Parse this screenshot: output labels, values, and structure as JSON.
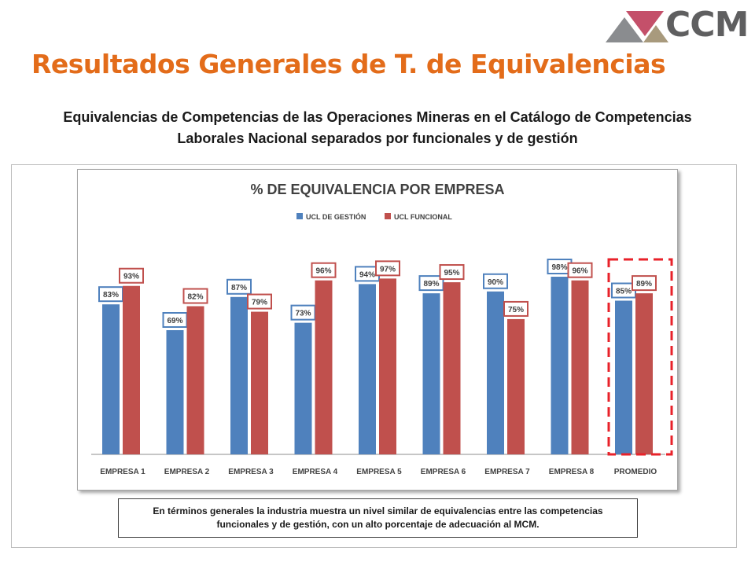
{
  "header": {
    "title": "Resultados Generales de T. de Equivalencias",
    "subtitle_line1": "Equivalencias de Competencias de las Operaciones Mineras en el Catálogo de Competencias",
    "subtitle_line2": "Laborales Nacional separados por funcionales y de gestión",
    "logo_text": "CCM"
  },
  "note": {
    "text": "En términos generales la industria muestra un nivel similar de equivalencias entre las competencias funcionales y de gestión, con un alto porcentaje de adecuación al MCM."
  },
  "colors": {
    "title": "#e36c1a",
    "gestion": "#4f81bd",
    "funcional": "#c0504d",
    "highlight": "#e8222a"
  },
  "chart_data": {
    "type": "bar",
    "title": "% DE EQUIVALENCIA POR EMPRESA",
    "categories": [
      "EMPRESA 1",
      "EMPRESA 2",
      "EMPRESA 3",
      "EMPRESA 4",
      "EMPRESA 5",
      "EMPRESA 6",
      "EMPRESA 7",
      "EMPRESA 8",
      "PROMEDIO"
    ],
    "series": [
      {
        "name": "UCL DE GESTIÓN",
        "values": [
          83,
          69,
          87,
          73,
          94,
          89,
          90,
          98,
          85
        ],
        "labels": [
          "83%",
          "69%",
          "87%",
          "73%",
          "94%",
          "89%",
          "90%",
          "98%",
          "85%"
        ]
      },
      {
        "name": "UCL FUNCIONAL",
        "values": [
          93,
          82,
          79,
          96,
          97,
          95,
          75,
          96,
          89
        ],
        "labels": [
          "93%",
          "82%",
          "79%",
          "96%",
          "97%",
          "95%",
          "75%",
          "96%",
          "89%"
        ]
      }
    ],
    "ylim": [
      0,
      100
    ],
    "legend": "top-center",
    "grid": false,
    "highlighted_category": "PROMEDIO"
  }
}
